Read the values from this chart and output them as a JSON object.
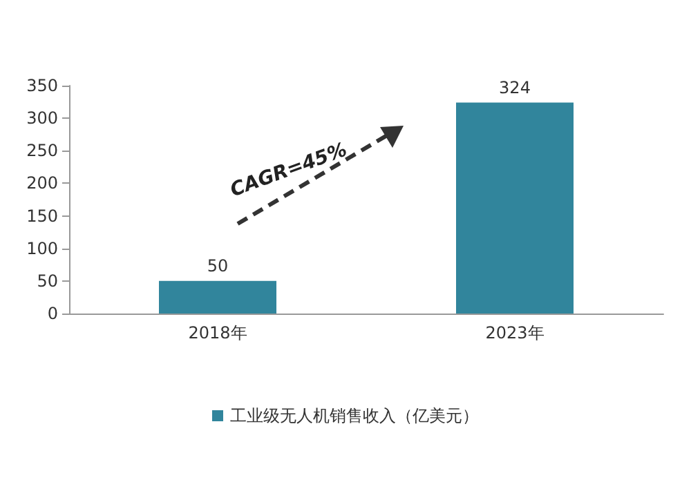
{
  "chart_data": {
    "type": "bar",
    "categories": [
      "2018年",
      "2023年"
    ],
    "series": [
      {
        "name": "工业级无人机销售收入（亿美元）",
        "color": "#31859c",
        "values": [
          50,
          324
        ]
      }
    ],
    "data_labels": true,
    "ylim": [
      0,
      350
    ],
    "yticks": [
      0,
      50,
      100,
      150,
      200,
      250,
      300,
      350
    ],
    "grid": false,
    "legend": "bottom",
    "annotations": [
      "CAGR=45%"
    ]
  }
}
